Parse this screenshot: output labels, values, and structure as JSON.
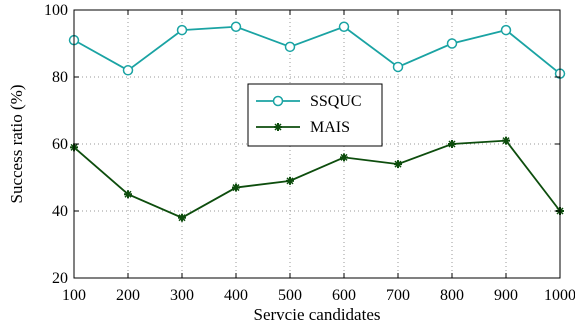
{
  "chart_data": {
    "type": "line",
    "x": [
      100,
      200,
      300,
      400,
      500,
      600,
      700,
      800,
      900,
      1000
    ],
    "x_tick_labels": [
      "100",
      "200",
      "300",
      "400",
      "500",
      "600",
      "700",
      "800",
      "900",
      "1000"
    ],
    "y_tick_labels": [
      "20",
      "40",
      "60",
      "80",
      "100"
    ],
    "xlabel": "Servcie candidates",
    "ylabel": "Success ratio (%)",
    "xlim": [
      100,
      1000
    ],
    "ylim": [
      20,
      100
    ],
    "y_ticks": [
      20,
      40,
      60,
      80,
      100
    ],
    "grid": true,
    "grid_style": "dotted",
    "legend_position": "center",
    "series": [
      {
        "name": "SSQUC",
        "color": "#1aa3a3",
        "marker": "circle",
        "values": [
          91,
          82,
          94,
          95,
          89,
          95,
          83,
          90,
          94,
          81
        ]
      },
      {
        "name": "MAIS",
        "color": "#0d4d0d",
        "marker": "star",
        "values": [
          59,
          45,
          38,
          47,
          49,
          56,
          54,
          60,
          61,
          40
        ]
      }
    ]
  }
}
